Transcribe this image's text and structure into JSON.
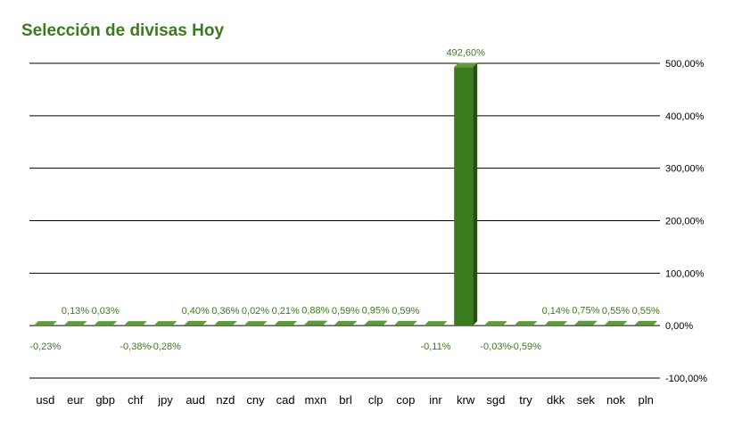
{
  "chart_data": {
    "type": "bar",
    "title": "Selección de divisas Hoy",
    "categories": [
      "usd",
      "eur",
      "gbp",
      "chf",
      "jpy",
      "aud",
      "nzd",
      "cny",
      "cad",
      "mxn",
      "brl",
      "clp",
      "cop",
      "inr",
      "krw",
      "sgd",
      "try",
      "dkk",
      "sek",
      "nok",
      "pln"
    ],
    "values": [
      -0.23,
      0.13,
      0.03,
      -0.38,
      -0.28,
      0.4,
      0.36,
      0.02,
      0.21,
      0.88,
      0.59,
      0.95,
      0.59,
      -0.11,
      492.6,
      -0.03,
      -0.59,
      0.14,
      0.75,
      0.55,
      0.55
    ],
    "labels": [
      "-0,23%",
      "0,13%",
      "0,03%",
      "-0,38%",
      "-0,28%",
      "0,40%",
      "0,36%",
      "0,02%",
      "0,21%",
      "0,88%",
      "0,59%",
      "0,95%",
      "0,59%",
      "-0,11%",
      "492,60%",
      "-0,03%",
      "-0,59%",
      "0,14%",
      "0,75%",
      "0,55%",
      "0,55%"
    ],
    "yticks": [
      500,
      400,
      300,
      200,
      100,
      0,
      -100
    ],
    "ytick_labels": [
      "500,00%",
      "400,00%",
      "300,00%",
      "200,00%",
      "100,00%",
      "0,00%",
      "-100,00%"
    ],
    "ylim": [
      -100,
      500
    ],
    "xlabel": "",
    "ylabel": "",
    "grid": true,
    "y_axis_side": "right",
    "legend": "none",
    "colors": {
      "bar_front": "#3b7a1f",
      "bar_top": "#5f9b3c",
      "bar_side": "#24500f",
      "title": "#3c7a1f",
      "label": "#3c7a1f"
    }
  }
}
